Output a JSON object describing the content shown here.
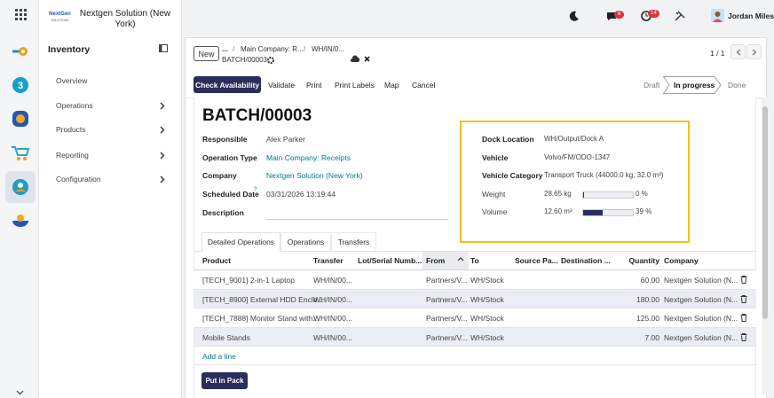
{
  "sidebar": {
    "logo_line1": "NextGen",
    "logo_line2": "SOLUTIONS",
    "company": "Nextgen Solution (New York)",
    "app": "Inventory",
    "menu": [
      {
        "label": "Overview",
        "submenu": false
      },
      {
        "label": "Operations",
        "submenu": true
      },
      {
        "label": "Products",
        "submenu": true
      },
      {
        "label": "Reporting",
        "submenu": true
      },
      {
        "label": "Configuration",
        "submenu": true
      }
    ]
  },
  "topbar": {
    "chat_badge": "9",
    "activity_badge": "14",
    "user": "Jordan Miles"
  },
  "control_panel": {
    "new": "New",
    "breadcrumb": [
      "...",
      "Main Company: R...",
      "WH/IN/0..."
    ],
    "record": "BATCH/00003",
    "pager": "1 / 1"
  },
  "actions": {
    "primary": "Check Availability",
    "buttons": [
      "Validate",
      "Print",
      "Print Labels",
      "Map",
      "Cancel"
    ]
  },
  "statusbar": {
    "stages": [
      "Draft",
      "In progress",
      "Done"
    ],
    "current": 1
  },
  "form": {
    "title": "BATCH/00003",
    "left_fields": [
      {
        "label": "Responsible",
        "value": "Alex Parker",
        "link": false
      },
      {
        "label": "Operation Type",
        "value": "Main Company: Receipts",
        "link": true
      },
      {
        "label": "Company",
        "value": "Nextgen Solution (New York)",
        "link": true
      },
      {
        "label": "Scheduled Date",
        "help": "?",
        "value": "03/31/2026 13:19:44",
        "link": false
      },
      {
        "label": "Description"
      }
    ],
    "right_fields": [
      {
        "label": "Dock Location",
        "value": "WH/Output/Dock A"
      },
      {
        "label": "Vehicle",
        "value": "Volvo/FM/ODO-1347"
      },
      {
        "label": "Vehicle Category",
        "value": "Transport Truck (44000.0 kg, 32.0 m³)"
      },
      {
        "label": "Weight",
        "value": "28.65 kg",
        "progress": {
          "value": 0,
          "label": "0 %"
        }
      },
      {
        "label": "Volume",
        "value": "12.60 m³",
        "progress": {
          "value": 39,
          "label": "39 %"
        }
      }
    ],
    "tabs": [
      "Detailed Operations",
      "Operations",
      "Transfers"
    ],
    "active_tab": 0,
    "table": {
      "columns": [
        "Product",
        "Transfer",
        "Lot/Serial Numb...",
        "From",
        "To",
        "Source Pa...",
        "Destination ...",
        "Quantity",
        "Company"
      ],
      "sort_column": 3,
      "rows": [
        {
          "product": "[TECH_9001] 2-in-1 Laptop",
          "transfer": "WH/IN/00...",
          "from": "Partners/V...",
          "to": "WH/Stock",
          "quantity": "60.00",
          "company": "Nextgen Solution (N..."
        },
        {
          "product": "[TECH_8900] External HDD Enclo...",
          "transfer": "WH/IN/00...",
          "from": "Partners/V...",
          "to": "WH/Stock",
          "quantity": "180.00",
          "company": "Nextgen Solution (N..."
        },
        {
          "product": "[TECH_7888] Monitor Stand with...",
          "transfer": "WH/IN/00...",
          "from": "Partners/V...",
          "to": "WH/Stock",
          "quantity": "125.00",
          "company": "Nextgen Solution (N..."
        },
        {
          "product": "Mobile Stands",
          "transfer": "WH/IN/00...",
          "from": "Partners/V...",
          "to": "WH/Stock",
          "quantity": "7.00",
          "company": "Nextgen Solution (N..."
        }
      ],
      "add_line": "Add a line"
    },
    "put_in_pack": "Put in Pack"
  }
}
